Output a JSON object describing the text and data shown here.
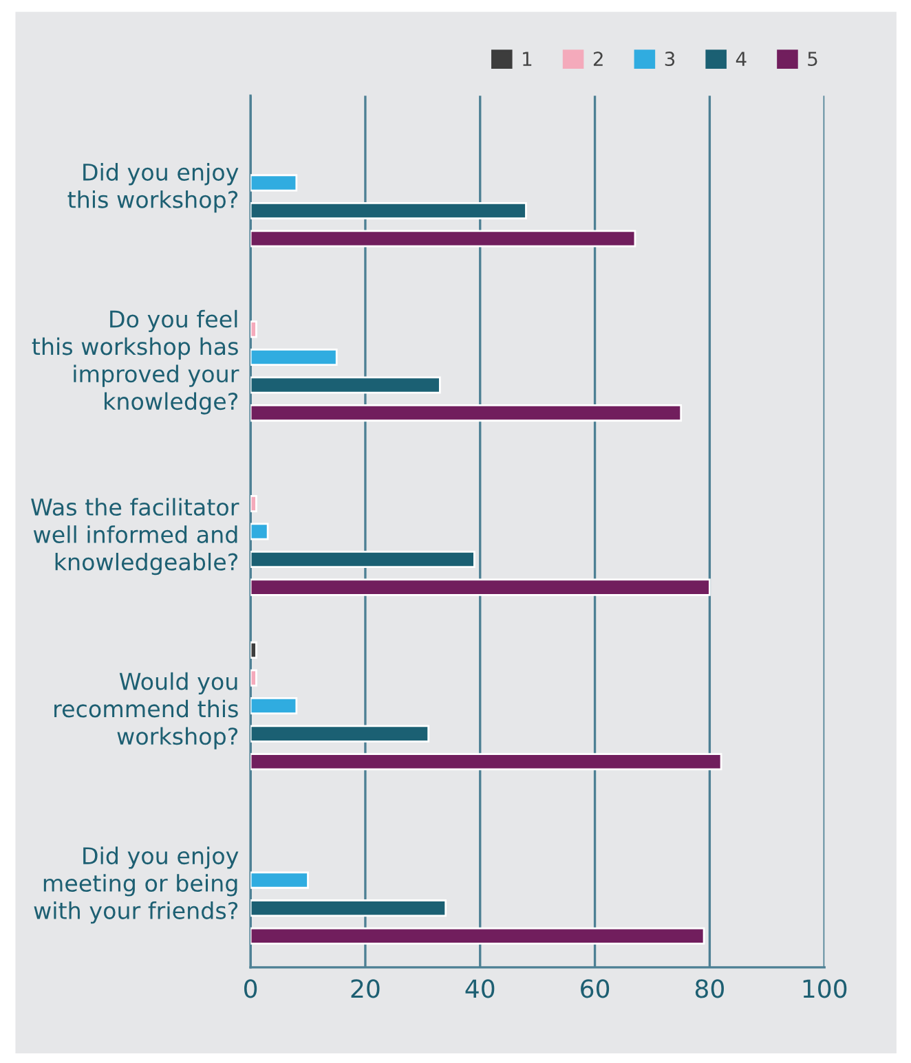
{
  "chart_data": {
    "type": "bar",
    "orientation": "horizontal",
    "categories": [
      "Did you enjoy\nthis workshop?",
      "Do you feel\nthis workshop has\nimproved your\nknowledge?",
      "Was the facilitator\nwell informed and\nknowledgeable?",
      "Would you\nrecommend this\nworkshop?",
      "Did you enjoy\nmeeting or being\nwith your friends?"
    ],
    "series": [
      {
        "name": "1",
        "color": "#3d3d3d",
        "values": [
          null,
          null,
          null,
          1,
          null
        ]
      },
      {
        "name": "2",
        "color": "#f4aabb",
        "values": [
          null,
          1,
          1,
          1,
          null
        ]
      },
      {
        "name": "3",
        "color": "#30ace0",
        "values": [
          8,
          15,
          3,
          8,
          10
        ]
      },
      {
        "name": "4",
        "color": "#1b6073",
        "values": [
          48,
          33,
          39,
          31,
          34
        ]
      },
      {
        "name": "5",
        "color": "#711e5d",
        "values": [
          67,
          75,
          80,
          82,
          79
        ]
      }
    ],
    "xlim": [
      0,
      100
    ],
    "xticks": [
      0,
      20,
      40,
      60,
      80,
      100
    ],
    "grid": "x",
    "legend": "top right"
  }
}
